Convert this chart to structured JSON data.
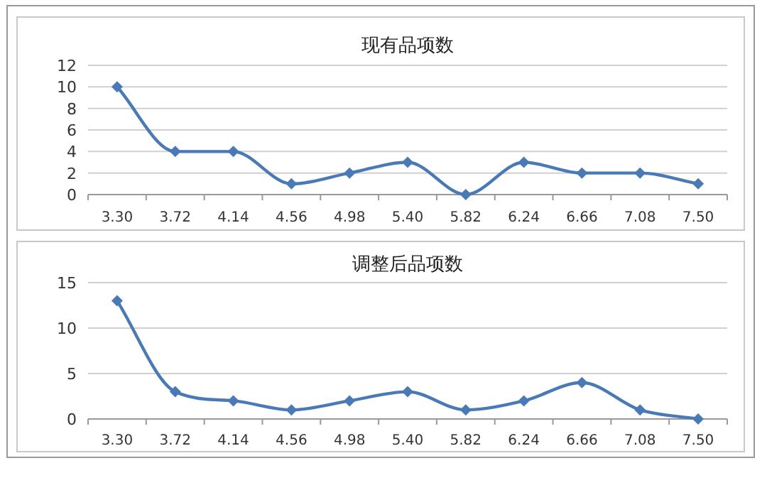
{
  "chart_data": [
    {
      "type": "line",
      "title": "现有品项数",
      "categories": [
        "3.30",
        "3.72",
        "4.14",
        "4.56",
        "4.98",
        "5.40",
        "5.82",
        "6.24",
        "6.66",
        "7.08",
        "7.50"
      ],
      "series": [
        {
          "color": "#4a7ab5",
          "values": [
            10,
            4,
            4,
            1,
            2,
            3,
            0,
            3,
            2,
            2,
            1
          ]
        }
      ],
      "ylim": [
        0,
        12
      ],
      "yticks": [
        0,
        2,
        4,
        6,
        8,
        10,
        12
      ],
      "grid": "y",
      "marker": "diamond",
      "line_style": "solid"
    },
    {
      "type": "line",
      "title": "调整后品项数",
      "categories": [
        "3.30",
        "3.72",
        "4.14",
        "4.56",
        "4.98",
        "5.40",
        "5.82",
        "6.24",
        "6.66",
        "7.08",
        "7.50"
      ],
      "series": [
        {
          "color": "#4a7ab5",
          "values": [
            13,
            3,
            2,
            1,
            2,
            3,
            1,
            2,
            4,
            1,
            0
          ]
        }
      ],
      "ylim": [
        0,
        15
      ],
      "yticks": [
        0,
        5,
        10,
        15
      ],
      "grid": "y",
      "marker": "diamond",
      "line_style": "solid"
    }
  ]
}
